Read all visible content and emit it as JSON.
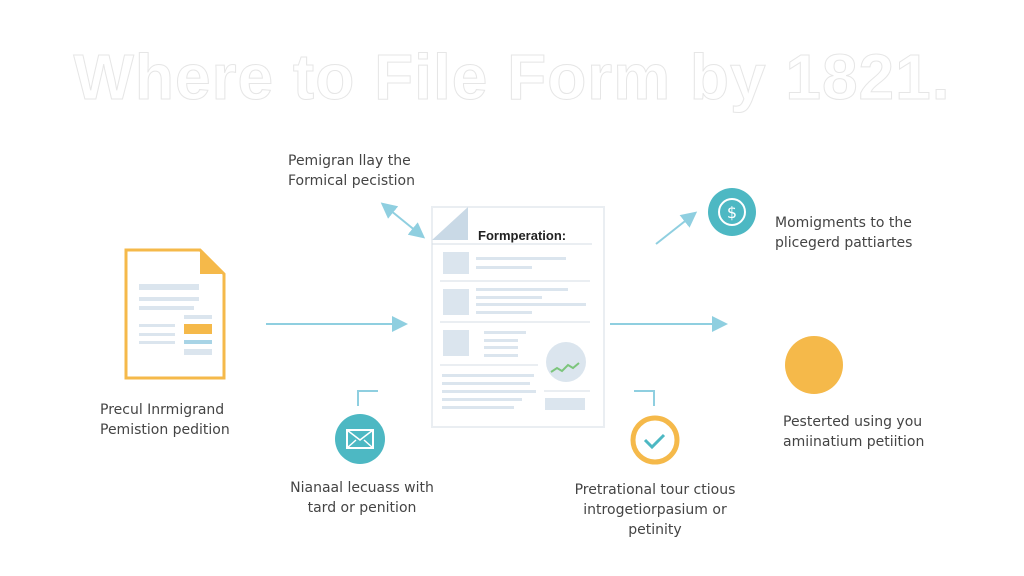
{
  "title": "Where to File Form by 1821.",
  "document": {
    "heading": "Formperation:"
  },
  "labels": {
    "left": "Precul Inrmigrand\nPemistion pedition",
    "top": "Pemigran llay the\nFormical pecistion",
    "top_right": "Momigments to the\nplicegerd pattiartes",
    "bottom_left": "Nianaal lecuass with\ntard or penition",
    "bottom_center": "Pretrational tour ctious\nintrogetiorpasium or\npetinity",
    "right": "Pesterted using you\namiinatium petiition"
  },
  "icons": {
    "left": "document-icon",
    "top_right": "dollar-icon",
    "bottom_left": "envelope-icon",
    "bottom_center": "checkmark-icon",
    "right": "orange-circle-icon"
  },
  "colors": {
    "teal": "#4db8c3",
    "orange": "#f5b94a",
    "arrow": "#8fcfe0",
    "doc_fill": "#dbe5ee"
  }
}
